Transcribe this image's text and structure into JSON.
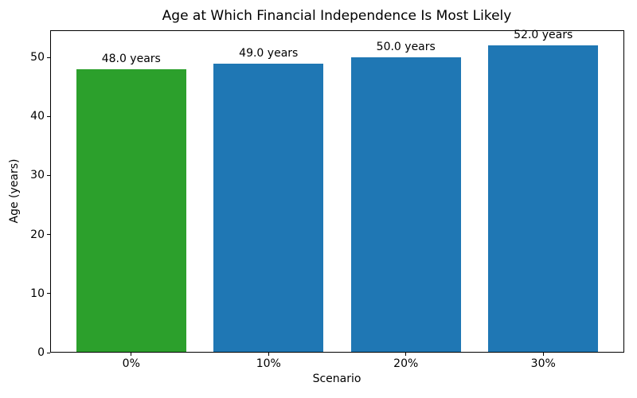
{
  "chart_data": {
    "type": "bar",
    "title": "Age at Which Financial Independence Is Most Likely",
    "xlabel": "Scenario",
    "ylabel": "Age (years)",
    "categories": [
      "0%",
      "10%",
      "20%",
      "30%"
    ],
    "values": [
      48.0,
      49.0,
      50.0,
      52.0
    ],
    "bar_labels": [
      "48.0 years",
      "49.0 years",
      "50.0 years",
      "52.0 years"
    ],
    "bar_colors": [
      "#2ca02c",
      "#1f77b4",
      "#1f77b4",
      "#1f77b4"
    ],
    "yticks": [
      0,
      10,
      20,
      30,
      40,
      50
    ],
    "ylim": [
      0,
      54.6
    ],
    "bar_width_fraction": 0.8,
    "grid": false,
    "legend": "none",
    "frame_color": "#000000",
    "background_color": "#ffffff"
  }
}
